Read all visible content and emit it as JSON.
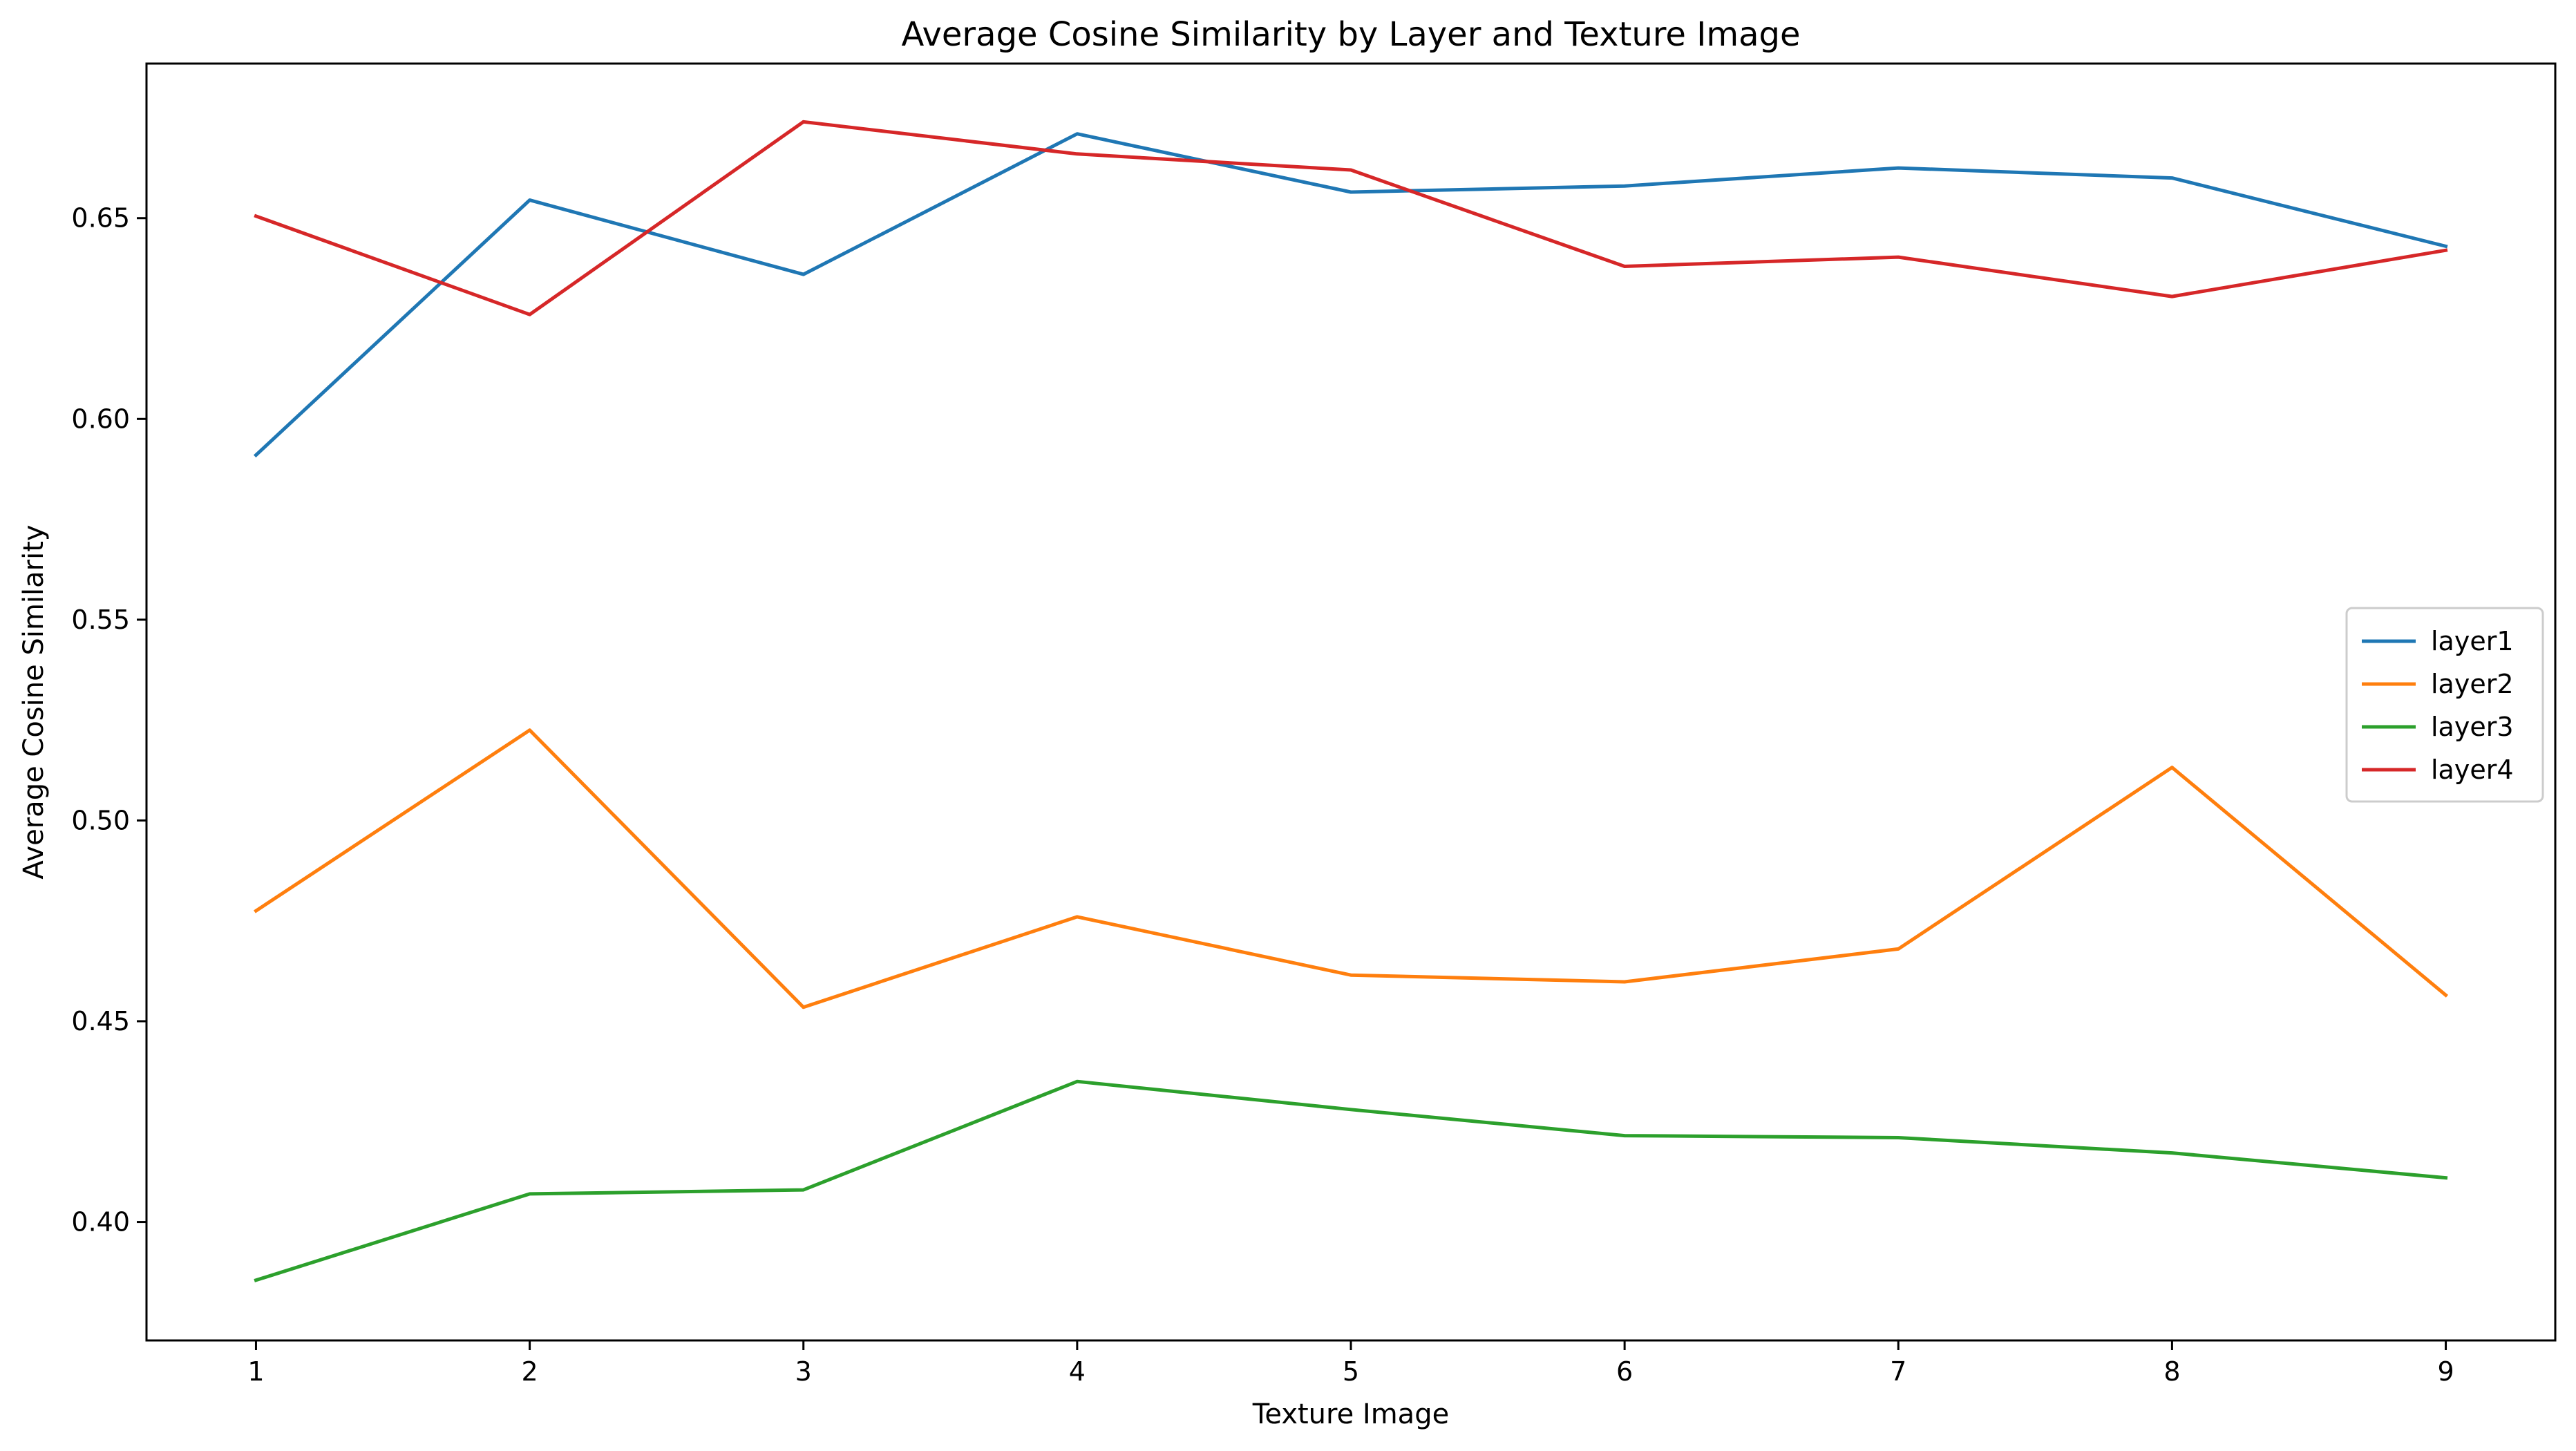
{
  "chart_data": {
    "type": "line",
    "title": "Average Cosine Similarity by Layer and Texture Image",
    "xlabel": "Texture Image",
    "ylabel": "Average Cosine Similarity",
    "x": [
      1,
      2,
      3,
      4,
      5,
      6,
      7,
      8,
      9
    ],
    "xlim": [
      0.6,
      9.4
    ],
    "ylim": [
      0.3705,
      0.6885
    ],
    "xticks": [
      1,
      2,
      3,
      4,
      5,
      6,
      7,
      8,
      9
    ],
    "yticks": [
      0.4,
      0.45,
      0.5,
      0.55,
      0.6,
      0.65
    ],
    "ytick_labels": [
      "0.40",
      "0.45",
      "0.50",
      "0.55",
      "0.60",
      "0.65"
    ],
    "grid": false,
    "legend_position": "center-right",
    "series": [
      {
        "name": "layer1",
        "color": "#1f77b4",
        "values": [
          0.591,
          0.6545,
          0.636,
          0.671,
          0.6565,
          0.658,
          0.6625,
          0.66,
          0.643
        ]
      },
      {
        "name": "layer2",
        "color": "#ff7f0e",
        "values": [
          0.4775,
          0.5225,
          0.4535,
          0.476,
          0.4615,
          0.4598,
          0.468,
          0.5132,
          0.4565
        ]
      },
      {
        "name": "layer3",
        "color": "#2ca02c",
        "values": [
          0.3855,
          0.407,
          0.408,
          0.435,
          0.428,
          0.4215,
          0.421,
          0.4172,
          0.411
        ]
      },
      {
        "name": "layer4",
        "color": "#d62728",
        "values": [
          0.6505,
          0.626,
          0.674,
          0.666,
          0.662,
          0.638,
          0.6403,
          0.6305,
          0.642
        ]
      }
    ]
  }
}
